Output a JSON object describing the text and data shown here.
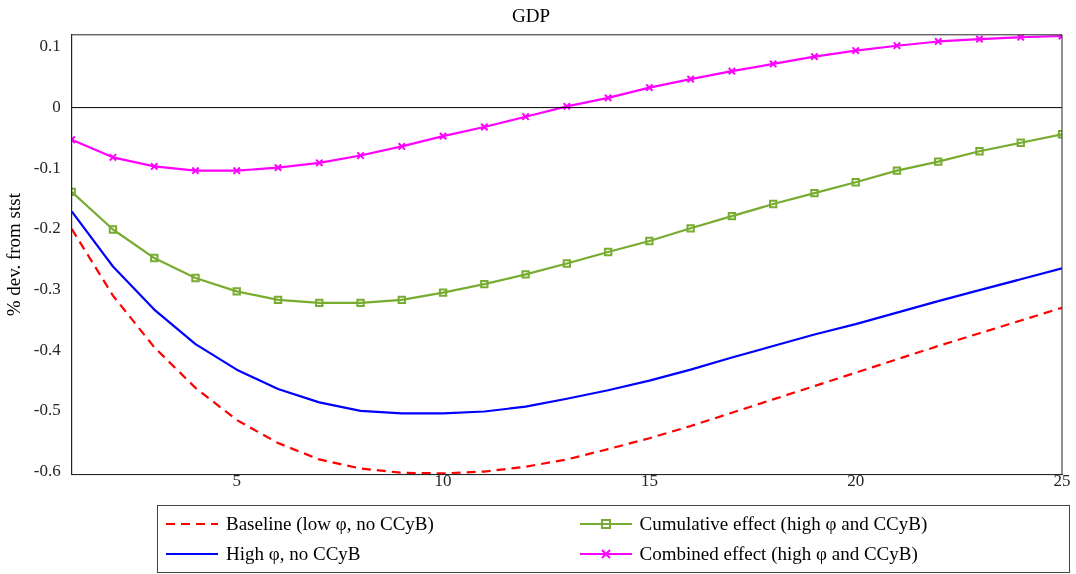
{
  "chart_data": {
    "type": "line",
    "title": "GDP",
    "ylabel": "% dev. from stst",
    "x": [
      1,
      2,
      3,
      4,
      5,
      6,
      7,
      8,
      9,
      10,
      11,
      12,
      13,
      14,
      15,
      16,
      17,
      18,
      19,
      20,
      21,
      22,
      23,
      24,
      25
    ],
    "xlim": [
      1,
      25
    ],
    "xticks": [
      5,
      10,
      15,
      20,
      25
    ],
    "ylim": [
      -0.605,
      0.12
    ],
    "yticks": [
      -0.6,
      -0.5,
      -0.4,
      -0.3,
      -0.2,
      -0.1,
      0,
      0.1
    ],
    "grid": false,
    "legend": "bottom",
    "ref_lines": [
      {
        "axis": "y",
        "value": 0,
        "color": "#000000"
      }
    ],
    "series": [
      {
        "name": "Baseline (low φ, no CCyB)",
        "color": "#ff0000",
        "line_style": "dashed",
        "marker": "none",
        "values": [
          -0.2,
          -0.31,
          -0.395,
          -0.462,
          -0.515,
          -0.553,
          -0.58,
          -0.595,
          -0.602,
          -0.603,
          -0.6,
          -0.592,
          -0.58,
          -0.563,
          -0.545,
          -0.525,
          -0.503,
          -0.481,
          -0.459,
          -0.437,
          -0.415,
          -0.393,
          -0.372,
          -0.351,
          -0.33
        ]
      },
      {
        "name": "High φ, no CCyB",
        "color": "#0000ff",
        "line_style": "solid",
        "marker": "none",
        "values": [
          -0.171,
          -0.262,
          -0.333,
          -0.39,
          -0.432,
          -0.464,
          -0.486,
          -0.5,
          -0.504,
          -0.504,
          -0.501,
          -0.493,
          -0.48,
          -0.466,
          -0.45,
          -0.432,
          -0.412,
          -0.393,
          -0.374,
          -0.357,
          -0.338,
          -0.319,
          -0.301,
          -0.283,
          -0.265
        ]
      },
      {
        "name": "Cumulative effect (high φ and CCyB)",
        "color": "#77ac30",
        "line_style": "solid",
        "marker": "square",
        "values": [
          -0.139,
          -0.201,
          -0.248,
          -0.281,
          -0.303,
          -0.317,
          -0.322,
          -0.322,
          -0.317,
          -0.305,
          -0.291,
          -0.275,
          -0.257,
          -0.238,
          -0.22,
          -0.199,
          -0.179,
          -0.159,
          -0.141,
          -0.123,
          -0.104,
          -0.089,
          -0.072,
          -0.058,
          -0.044
        ]
      },
      {
        "name": "Combined effect (high φ and CCyB)",
        "color": "#ff00ff",
        "line_style": "solid",
        "marker": "cross",
        "values": [
          -0.053,
          -0.082,
          -0.097,
          -0.104,
          -0.104,
          -0.099,
          -0.091,
          -0.079,
          -0.064,
          -0.047,
          -0.032,
          -0.015,
          0.002,
          0.016,
          0.033,
          0.047,
          0.06,
          0.072,
          0.084,
          0.094,
          0.102,
          0.109,
          0.113,
          0.116,
          0.118
        ]
      }
    ]
  }
}
